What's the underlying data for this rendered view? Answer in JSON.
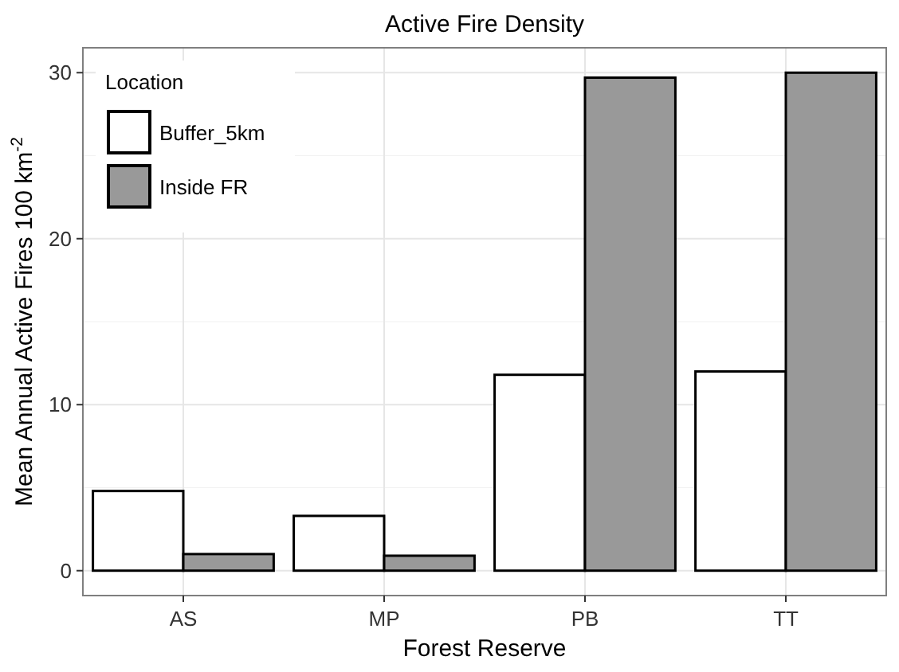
{
  "chart_data": {
    "type": "bar",
    "title": "Active Fire Density",
    "xlabel": "Forest Reserve",
    "ylabel": "Mean Annual Active Fires 100 km$^{-2}$",
    "legend_title": "Location",
    "categories": [
      "AS",
      "MP",
      "PB",
      "TT"
    ],
    "series": [
      {
        "name": "Buffer_5km",
        "color": "#ffffff",
        "values": [
          4.8,
          3.3,
          11.8,
          12.0
        ]
      },
      {
        "name": "Inside FR",
        "color": "#999999",
        "values": [
          1.0,
          0.9,
          29.7,
          30.0
        ]
      }
    ],
    "ylim": [
      -1.5,
      31.5
    ],
    "yticks": [
      0,
      10,
      20,
      30
    ],
    "grid": true,
    "legend": "top left"
  }
}
